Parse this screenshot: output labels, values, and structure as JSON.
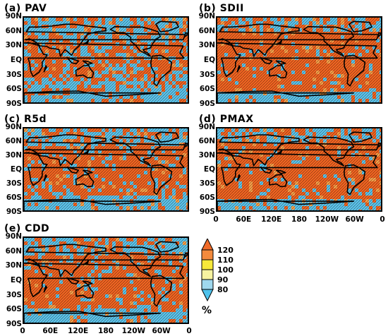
{
  "panels": [
    {
      "title": "(a)  PAV"
    },
    {
      "title": "(b)  SDII"
    },
    {
      "title": "(c)  R5d"
    },
    {
      "title": "(d)  PMAX"
    },
    {
      "title": "(e)  CDD"
    }
  ],
  "lat_ticks": [
    "90N",
    "60N",
    "30N",
    "EQ",
    "30S",
    "60S",
    "90S"
  ],
  "lon_ticks": [
    "0",
    "60E",
    "120E",
    "180",
    "120W",
    "60W",
    "0"
  ],
  "colorbar": {
    "levels": [
      "120",
      "110",
      "100",
      "90",
      "80"
    ],
    "unit": "%",
    "colors": [
      "#f06a28",
      "#f38a3c",
      "#f7e93a",
      "#9fd8ee",
      "#4ec2ec"
    ]
  },
  "colors": {
    "high": "#f26522",
    "low": "#5ec4ea",
    "coast": "#000000"
  }
}
